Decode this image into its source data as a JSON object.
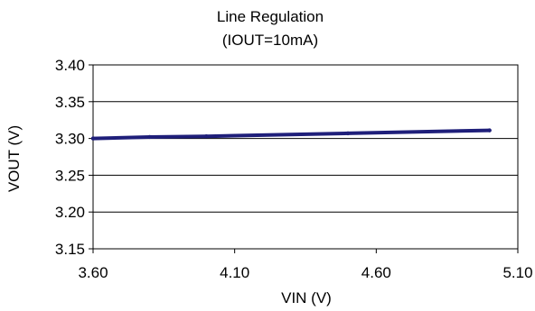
{
  "chart_data": {
    "type": "line",
    "title": "Line Regulation",
    "subtitle": "(IOUT=10mA)",
    "xlabel": "VIN (V)",
    "ylabel": "VOUT (V)",
    "xlim": [
      3.6,
      5.1
    ],
    "ylim": [
      3.15,
      3.4
    ],
    "x_ticks": [
      "3.60",
      "4.10",
      "4.60",
      "5.10"
    ],
    "y_ticks": [
      "3.40",
      "3.35",
      "3.30",
      "3.25",
      "3.20",
      "3.15"
    ],
    "grid": "horizontal",
    "legend": "none",
    "series": [
      {
        "color": "#1f1f7a",
        "x": [
          3.6,
          3.8,
          4.0,
          4.5,
          5.0
        ],
        "y": [
          3.3,
          3.302,
          3.303,
          3.307,
          3.311
        ]
      }
    ]
  }
}
